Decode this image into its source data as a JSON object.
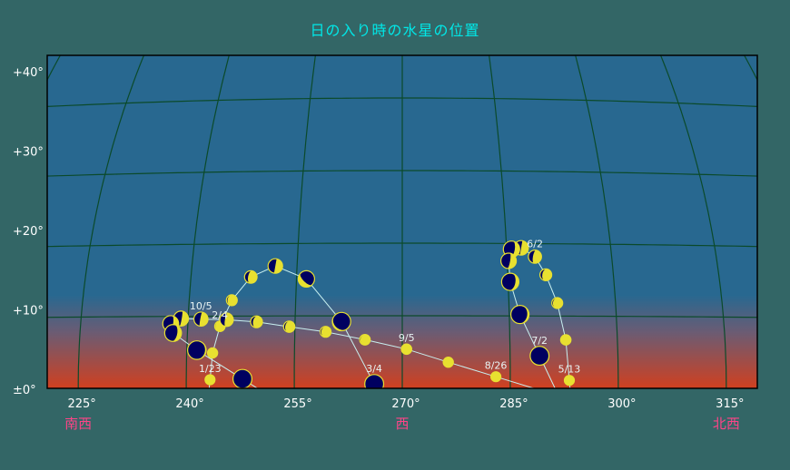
{
  "title": "日の入り時の水星の位置",
  "colors": {
    "background": "#336666",
    "sky_top": "#286890",
    "sky_horizon": "#d04020",
    "grid": "#0b4a2a",
    "path": "#c8f0f0",
    "planet_lit": "#e8e030",
    "planet_dark": "#000060",
    "title": "#00e8e8",
    "direction_label": "#ff4488"
  },
  "chart_data": {
    "type": "scatter",
    "title": "日の入り時の水星の位置",
    "xlabel": "",
    "ylabel": "",
    "xlim": [
      221,
      320
    ],
    "ylim": [
      0,
      45
    ],
    "x_ticks": [
      {
        "value": 225,
        "label": "225°"
      },
      {
        "value": 240,
        "label": "240°"
      },
      {
        "value": 255,
        "label": "255°"
      },
      {
        "value": 270,
        "label": "270°"
      },
      {
        "value": 285,
        "label": "285°"
      },
      {
        "value": 300,
        "label": "300°"
      },
      {
        "value": 315,
        "label": "315°"
      }
    ],
    "y_ticks": [
      {
        "value": 0,
        "label": "±0°"
      },
      {
        "value": 10,
        "label": "+10°"
      },
      {
        "value": 20,
        "label": "+20°"
      },
      {
        "value": 30,
        "label": "+30°"
      },
      {
        "value": 40,
        "label": "+40°"
      }
    ],
    "direction_labels": [
      {
        "az": 225,
        "label": "南西"
      },
      {
        "az": 270,
        "label": "西"
      },
      {
        "az": 315,
        "label": "北西"
      }
    ],
    "grid": true,
    "series": [
      {
        "points": [
          {
            "az": 243.3,
            "alt": 1.2,
            "phase": 1.0,
            "label": "1/23"
          },
          {
            "az": 243.6,
            "alt": 4.9,
            "phase": 0.98
          },
          {
            "az": 244.5,
            "alt": 8.6,
            "phase": 0.95,
            "label": "2/4"
          },
          {
            "az": 246.0,
            "alt": 12.2,
            "phase": 0.9
          },
          {
            "az": 248.5,
            "alt": 15.4,
            "phase": 0.72
          },
          {
            "az": 251.9,
            "alt": 16.9,
            "phase": 0.5
          },
          {
            "az": 256.4,
            "alt": 15.1,
            "phase": 0.3
          },
          {
            "az": 261.5,
            "alt": 9.2,
            "phase": 0.08
          },
          {
            "az": 266.1,
            "alt": 0.6,
            "phase": 0.02,
            "label": "3/4"
          }
        ]
      },
      {
        "points": [
          {
            "az": 283.0,
            "alt": 1.6,
            "phase": 1.0,
            "label": "8/26"
          },
          {
            "az": 276.4,
            "alt": 3.6,
            "phase": 0.98
          },
          {
            "az": 270.6,
            "alt": 5.4,
            "phase": 0.96,
            "label": "9/5"
          },
          {
            "az": 264.8,
            "alt": 6.7,
            "phase": 0.93
          },
          {
            "az": 259.3,
            "alt": 7.8,
            "phase": 0.9
          },
          {
            "az": 254.2,
            "alt": 8.5,
            "phase": 0.86
          },
          {
            "az": 249.6,
            "alt": 9.2,
            "phase": 0.8
          },
          {
            "az": 245.4,
            "alt": 9.5,
            "phase": 0.62
          },
          {
            "az": 241.8,
            "alt": 9.6,
            "phase": 0.55,
            "label": "10/5"
          },
          {
            "az": 239.0,
            "alt": 9.7,
            "phase": 0.45
          },
          {
            "az": 237.6,
            "alt": 9.0,
            "phase": 0.35
          },
          {
            "az": 238.0,
            "alt": 7.7,
            "phase": 0.25
          },
          {
            "az": 241.4,
            "alt": 5.3,
            "phase": 0.06
          },
          {
            "az": 247.8,
            "alt": 1.3,
            "phase": 0.02
          }
        ]
      },
      {
        "points": [
          {
            "az": 293.2,
            "alt": 1.1,
            "phase": 1.0,
            "label": "5/13"
          },
          {
            "az": 292.8,
            "alt": 6.7,
            "phase": 0.96
          },
          {
            "az": 291.8,
            "alt": 11.8,
            "phase": 0.9
          },
          {
            "az": 290.4,
            "alt": 15.7,
            "phase": 0.8
          },
          {
            "az": 289.0,
            "alt": 18.2,
            "phase": 0.65,
            "label": "6/2"
          },
          {
            "az": 287.1,
            "alt": 19.4,
            "phase": 0.5
          },
          {
            "az": 285.7,
            "alt": 19.2,
            "phase": 0.3
          },
          {
            "az": 285.2,
            "alt": 17.6,
            "phase": 0.4
          },
          {
            "az": 285.3,
            "alt": 14.7,
            "phase": 0.2
          },
          {
            "az": 286.5,
            "alt": 10.2,
            "phase": 0.1
          },
          {
            "az": 289.1,
            "alt": 4.5,
            "phase": 0.03,
            "label": "7/2"
          }
        ]
      }
    ]
  }
}
